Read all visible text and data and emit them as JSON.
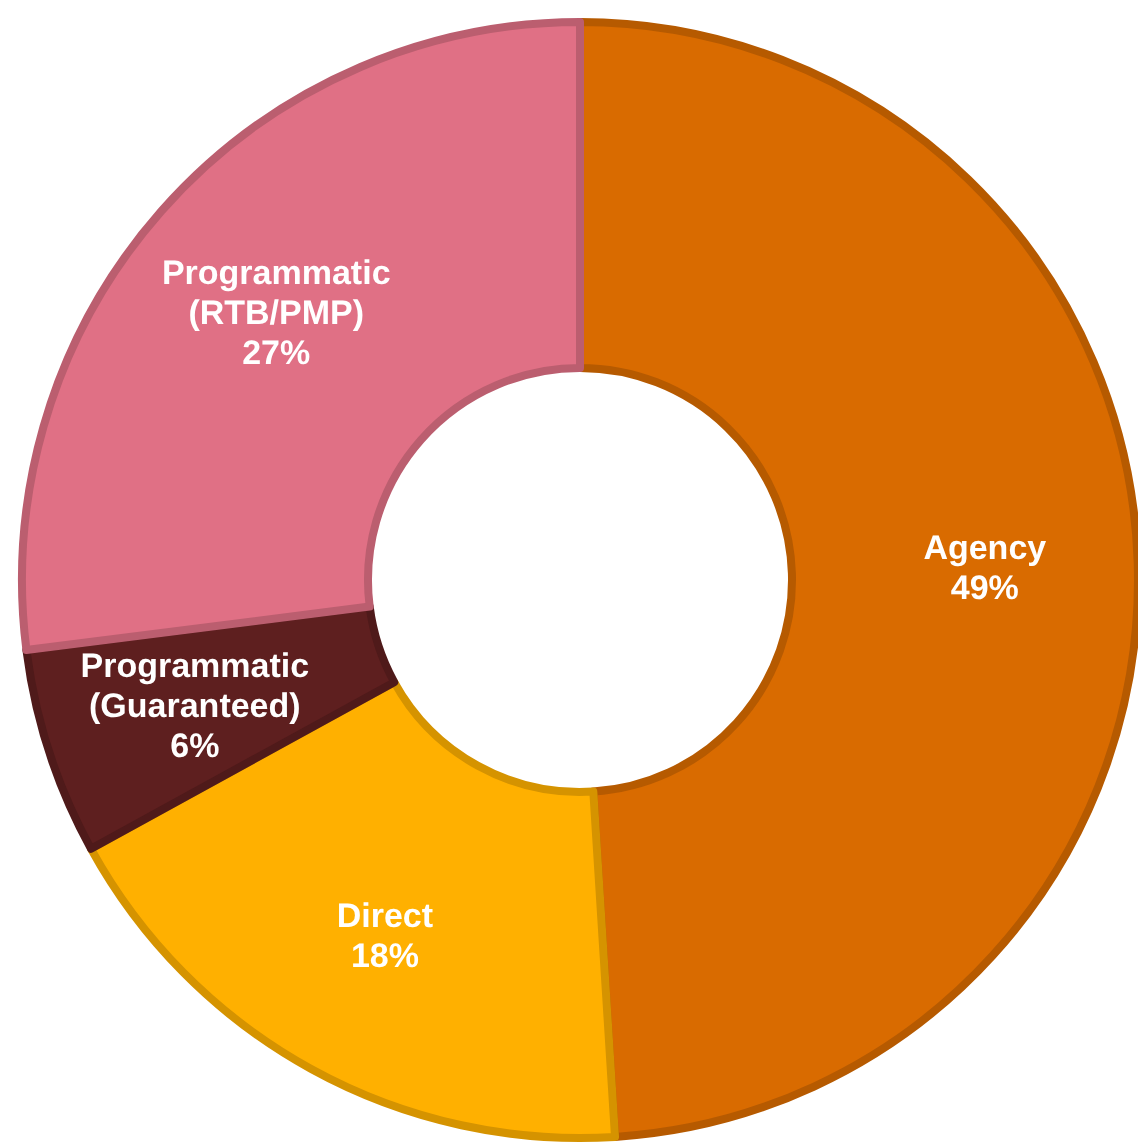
{
  "chart_data": {
    "type": "donut",
    "categories": [
      "Agency",
      "Direct",
      "Programmatic (Guaranteed)",
      "Programmatic (RTB/PMP)"
    ],
    "values": [
      49,
      18,
      6,
      27
    ],
    "colors": [
      "#d96b00",
      "#ffb000",
      "#5e1f1f",
      "#e07085"
    ],
    "value_labels": [
      "49%",
      "18%",
      "6%",
      "27%"
    ]
  }
}
